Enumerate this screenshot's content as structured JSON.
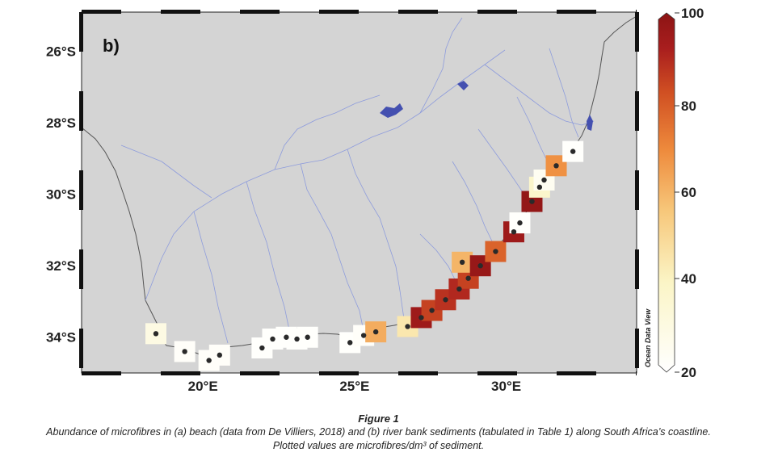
{
  "chart_data": {
    "type": "scatter",
    "panel_label": "b)",
    "x_ticks": [
      "20°E",
      "25°E",
      "30°E"
    ],
    "x_tick_values": [
      20,
      25,
      30
    ],
    "y_ticks": [
      "26°S",
      "28°S",
      "30°S",
      "32°S",
      "34°S"
    ],
    "y_tick_values": [
      -26,
      -28,
      -30,
      -32,
      -34
    ],
    "xlim": [
      16.0,
      34.3
    ],
    "ylim": [
      -35.0,
      -24.9
    ],
    "colorbar": {
      "min": 20,
      "max": 100,
      "ticks": [
        20,
        40,
        60,
        80,
        100
      ],
      "tick_labels": [
        "20",
        "40",
        "60",
        "80",
        "100"
      ],
      "watermark": "Ocean Data View"
    },
    "colors": {
      "land": "#d4d4d4",
      "rivers": "#8e9cdc",
      "lakes": "#4450b0",
      "dot": "#2a2a2a",
      "scale": [
        "#ffffff",
        "#fbf5c6",
        "#f7c77a",
        "#ee8a3c",
        "#d04f22",
        "#a91e1e",
        "#8c1414"
      ]
    },
    "points": [
      {
        "lon": 18.45,
        "lat": -33.9,
        "value": 30
      },
      {
        "lon": 19.4,
        "lat": -34.4,
        "value": 22
      },
      {
        "lon": 20.2,
        "lat": -34.65,
        "value": 22
      },
      {
        "lon": 20.55,
        "lat": -34.5,
        "value": 22
      },
      {
        "lon": 21.95,
        "lat": -34.3,
        "value": 21
      },
      {
        "lon": 22.3,
        "lat": -34.05,
        "value": 21
      },
      {
        "lon": 22.75,
        "lat": -34.0,
        "value": 21
      },
      {
        "lon": 23.1,
        "lat": -34.05,
        "value": 21
      },
      {
        "lon": 23.45,
        "lat": -34.0,
        "value": 21
      },
      {
        "lon": 24.85,
        "lat": -34.15,
        "value": 21
      },
      {
        "lon": 25.3,
        "lat": -33.95,
        "value": 22
      },
      {
        "lon": 25.7,
        "lat": -33.85,
        "value": 62
      },
      {
        "lon": 26.75,
        "lat": -33.7,
        "value": 45
      },
      {
        "lon": 27.2,
        "lat": -33.45,
        "value": 95
      },
      {
        "lon": 27.55,
        "lat": -33.25,
        "value": 85
      },
      {
        "lon": 28.0,
        "lat": -32.95,
        "value": 88
      },
      {
        "lon": 28.45,
        "lat": -32.65,
        "value": 90
      },
      {
        "lon": 28.75,
        "lat": -32.35,
        "value": 85
      },
      {
        "lon": 28.55,
        "lat": -31.9,
        "value": 60
      },
      {
        "lon": 29.15,
        "lat": -32.0,
        "value": 97
      },
      {
        "lon": 29.65,
        "lat": -31.6,
        "value": 78
      },
      {
        "lon": 30.25,
        "lat": -31.05,
        "value": 95
      },
      {
        "lon": 30.45,
        "lat": -30.8,
        "value": 21
      },
      {
        "lon": 30.85,
        "lat": -30.2,
        "value": 98
      },
      {
        "lon": 31.1,
        "lat": -29.8,
        "value": 38
      },
      {
        "lon": 31.25,
        "lat": -29.6,
        "value": 25
      },
      {
        "lon": 31.65,
        "lat": -29.2,
        "value": 68
      },
      {
        "lon": 32.2,
        "lat": -28.8,
        "value": 21
      }
    ]
  },
  "caption": {
    "title": "Figure 1",
    "line1": "Abundance of microfibres in (a) beach (data from De Villiers, 2018) and (b) river bank sediments (tabulated in Table 1) along South Africa’s coastline.",
    "line2": "Plotted values are microfibres/dm³ of sediment."
  }
}
